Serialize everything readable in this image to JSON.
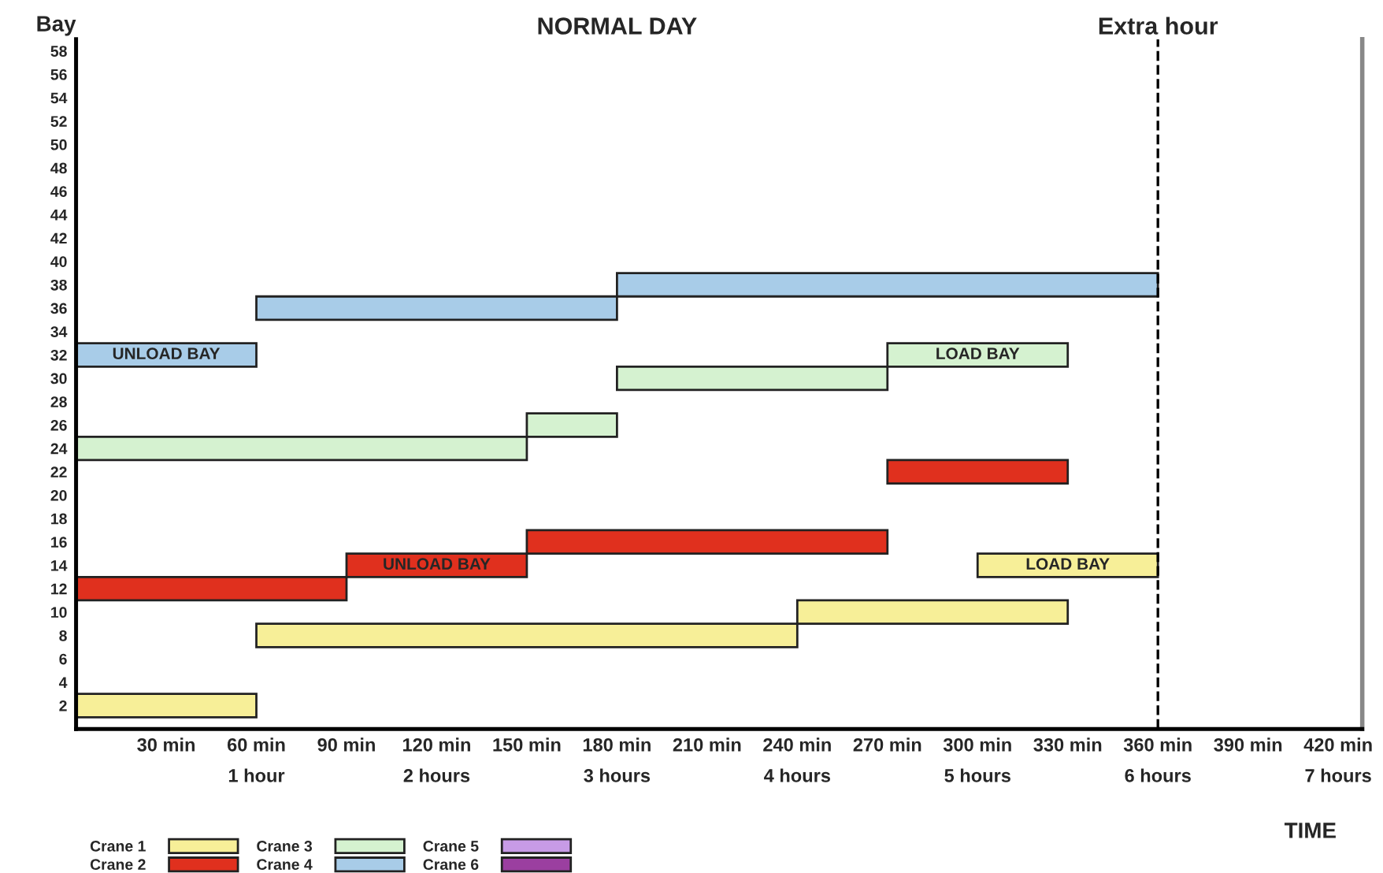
{
  "chart_data": {
    "type": "bar",
    "orientation": "horizontal",
    "title": "NORMAL DAY",
    "xlabel": "TIME",
    "ylabel": "Bay",
    "series": [
      {
        "name": "Crane 1",
        "color": "#f7ef98",
        "x": [
          2,
          8,
          10,
          14
        ],
        "base": [
          0,
          60,
          240,
          300
        ],
        "values": [
          60,
          180,
          90,
          60
        ],
        "value_labels": [
          null,
          null,
          null,
          "LOAD BAY"
        ]
      },
      {
        "name": "Crane 2",
        "color": "#e0301e",
        "x": [
          12,
          14,
          16,
          22
        ],
        "base": [
          0,
          90,
          150,
          270
        ],
        "values": [
          90,
          60,
          120,
          60
        ],
        "value_labels": [
          null,
          "UNLOAD BAY",
          null,
          null
        ]
      },
      {
        "name": "Crane 3",
        "color": "#d5f2d0",
        "x": [
          24,
          26,
          30,
          32
        ],
        "base": [
          0,
          150,
          180,
          270
        ],
        "values": [
          150,
          30,
          90,
          60
        ],
        "value_labels": [
          null,
          null,
          null,
          "LOAD BAY"
        ]
      },
      {
        "name": "Crane 4",
        "color": "#a8cce8",
        "x": [
          32,
          36,
          38
        ],
        "base": [
          0,
          60,
          180
        ],
        "values": [
          60,
          120,
          180
        ],
        "value_labels": [
          "UNLOAD BAY",
          null,
          null
        ]
      },
      {
        "name": "Crane 5",
        "color": "#c79be6"
      },
      {
        "name": "Crane 6",
        "color": "#9b3fa0"
      }
    ],
    "ref_lines": [
      {
        "axis": "x",
        "value": 360,
        "label": "Extra hour",
        "line_style": "dashed",
        "color": "#000000"
      }
    ],
    "xlim": [
      0,
      428
    ],
    "ylim": [
      0,
      59
    ],
    "xticks": [
      {
        "value": 30,
        "label": "30 min"
      },
      {
        "value": 60,
        "label": "60 min\n1 hour"
      },
      {
        "value": 90,
        "label": "90 min"
      },
      {
        "value": 120,
        "label": "120 min\n2 hours"
      },
      {
        "value": 150,
        "label": "150 min"
      },
      {
        "value": 180,
        "label": "180 min\n3 hours"
      },
      {
        "value": 210,
        "label": "210 min"
      },
      {
        "value": 240,
        "label": "240 min\n4 hours"
      },
      {
        "value": 270,
        "label": "270 min"
      },
      {
        "value": 300,
        "label": "300 min\n5 hours"
      },
      {
        "value": 330,
        "label": "330 min"
      },
      {
        "value": 360,
        "label": "360 min\n6 hours"
      },
      {
        "value": 390,
        "label": "390 min"
      },
      {
        "value": 420,
        "label": "420 min\n7 hours"
      }
    ],
    "yticks": [
      2,
      4,
      6,
      8,
      10,
      12,
      14,
      16,
      18,
      20,
      22,
      24,
      26,
      28,
      30,
      32,
      34,
      36,
      38,
      40,
      42,
      44,
      46,
      48,
      50,
      52,
      54,
      56,
      58
    ],
    "grid": false,
    "legend": "bottom left"
  }
}
